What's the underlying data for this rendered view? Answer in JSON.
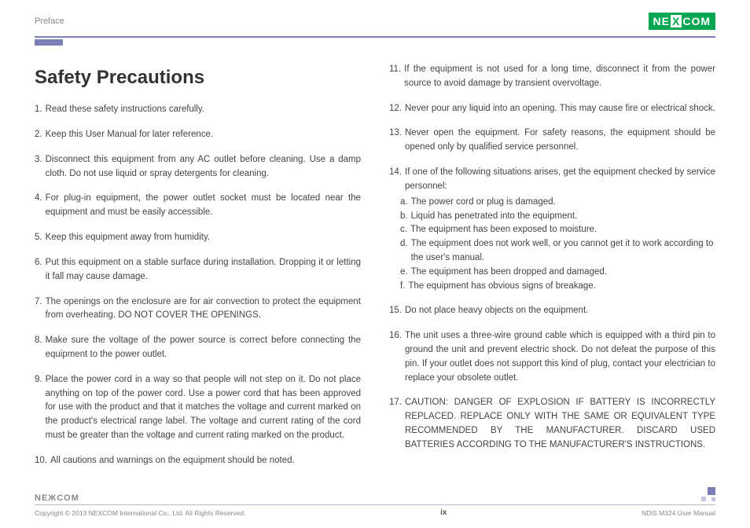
{
  "header": {
    "section": "Preface",
    "logo_text_left": "NE",
    "logo_x": "X",
    "logo_text_right": "COM"
  },
  "title": "Safety Precautions",
  "left_items": [
    {
      "n": "1.",
      "t": "Read these safety instructions carefully."
    },
    {
      "n": "2.",
      "t": "Keep this User Manual for later reference."
    },
    {
      "n": "3.",
      "t": "Disconnect this equipment from any AC outlet before cleaning. Use a damp cloth. Do not use liquid or spray detergents for cleaning."
    },
    {
      "n": "4.",
      "t": "For plug-in equipment, the power outlet socket must be located near the equipment and must be easily accessible."
    },
    {
      "n": "5.",
      "t": "Keep this equipment away from humidity."
    },
    {
      "n": "6.",
      "t": "Put this equipment on a stable surface during installation. Dropping it or letting it fall may cause damage."
    },
    {
      "n": "7.",
      "t": "The openings on the enclosure are for air convection to protect the equipment from overheating. DO NOT COVER THE OPENINGS."
    },
    {
      "n": "8.",
      "t": "Make sure the voltage of the power source is correct before connecting the equipment to the power outlet."
    },
    {
      "n": "9.",
      "t": "Place the power cord in a way so that people will not step on it. Do not place anything on top of the power cord. Use a power cord that has been approved for use with the product and that it matches the voltage and current marked on the product's electrical range label. The voltage and current rating of the cord must be greater than the voltage and current rating marked on the product."
    },
    {
      "n": "10.",
      "t": "All cautions and warnings on the equipment should be noted."
    }
  ],
  "right_items": [
    {
      "n": "11.",
      "t": "If the equipment is not used for a long time, disconnect it from the power source to avoid damage by transient overvoltage."
    },
    {
      "n": "12.",
      "t": "Never pour any liquid into an opening. This may cause fire or electrical shock."
    },
    {
      "n": "13.",
      "t": "Never open the equipment. For safety reasons, the equipment should be opened only by qualified service personnel."
    },
    {
      "n": "14.",
      "t": "If one of the following situations arises, get the equipment checked by service personnel:",
      "sub": [
        {
          "n": "a.",
          "t": "The power cord or plug is damaged."
        },
        {
          "n": "b.",
          "t": "Liquid has penetrated into the equipment."
        },
        {
          "n": "c.",
          "t": "The equipment has been exposed to moisture."
        },
        {
          "n": "d.",
          "t": "The equipment does not work well, or you cannot get it to work according to the user's manual."
        },
        {
          "n": "e.",
          "t": "The equipment has been dropped and damaged."
        },
        {
          "n": "f.",
          "t": "The equipment has obvious signs of breakage."
        }
      ]
    },
    {
      "n": "15.",
      "t": "Do not place heavy objects on the equipment."
    },
    {
      "n": "16.",
      "t": "The unit uses a three-wire ground cable which is equipped with a third pin to ground the unit and prevent electric shock. Do not defeat the purpose of this pin. If your outlet does not support this kind of plug, contact your electrician to replace your obsolete outlet."
    },
    {
      "n": "17.",
      "t": "CAUTION: DANGER OF EXPLOSION IF BATTERY IS INCORRECTLY REPLACED. REPLACE ONLY WITH THE SAME OR EQUIVALENT TYPE RECOMMENDED BY THE MANUFACTURER. DISCARD USED BATTERIES ACCORDING TO THE MANUFACTURER'S INSTRUCTIONS."
    }
  ],
  "footer": {
    "logo": "NEЖCOM",
    "copyright": "Copyright © 2013 NEXCOM International Co., Ltd. All Rights Reserved.",
    "page": "ix",
    "doc": "NDiS M324 User Manual"
  }
}
